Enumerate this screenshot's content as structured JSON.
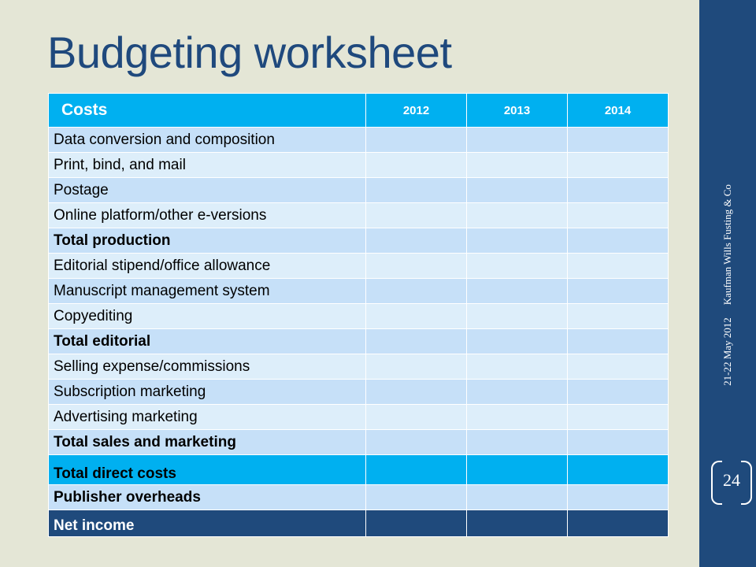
{
  "slide": {
    "title": "Budgeting worksheet",
    "side_date": "21-22 May 2012",
    "side_org": "Kaufman Wills Fusting & Co",
    "page_number": "24"
  },
  "table": {
    "header": {
      "costs": "Costs",
      "years": [
        "2012",
        "2013",
        "2014"
      ]
    },
    "rows": [
      "Data conversion and composition",
      "Print, bind, and mail",
      "Postage",
      "Online platform/other e-versions",
      "Total production",
      "Editorial stipend/office allowance",
      "Manuscript management system",
      "Copyediting",
      "Total editorial",
      "Selling expense/commissions",
      "Subscription marketing",
      "Advertising marketing",
      "Total sales and marketing",
      "Total direct costs",
      "Publisher overheads",
      "Net income"
    ]
  },
  "colors": {
    "title": "#1f497d",
    "header_fill": "#00b0f0",
    "row_dark": "#c6e0f8",
    "row_light": "#ddeefa",
    "net_fill": "#1f4a7c",
    "background": "#e4e6d6"
  }
}
